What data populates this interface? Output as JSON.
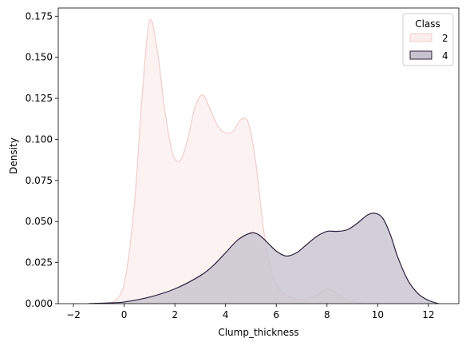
{
  "chart_data": {
    "type": "area",
    "xlabel": "Clump_thickness",
    "ylabel": "Density",
    "xlim": [
      -2.6,
      13.2
    ],
    "ylim": [
      0,
      0.18
    ],
    "xticks": [
      -2,
      0,
      2,
      4,
      6,
      8,
      10,
      12
    ],
    "yticks": [
      0.0,
      0.025,
      0.05,
      0.075,
      0.1,
      0.125,
      0.15,
      0.175
    ],
    "ytick_labels": [
      "0.000",
      "0.025",
      "0.050",
      "0.075",
      "0.100",
      "0.125",
      "0.150",
      "0.175"
    ],
    "grid": false,
    "legend": {
      "title": "Class",
      "placement": "top-right"
    },
    "series": [
      {
        "name": "2",
        "fill": "#fbedec",
        "stroke": "#efcfca",
        "x": [
          -0.5,
          0.0,
          0.4,
          0.7,
          1.0,
          1.3,
          1.6,
          1.9,
          2.2,
          2.5,
          2.8,
          3.1,
          3.4,
          3.7,
          4.0,
          4.3,
          4.6,
          4.9,
          5.2,
          5.5,
          5.8,
          6.1,
          6.4,
          6.8,
          7.2,
          7.6,
          8.0,
          8.4,
          8.8,
          9.5
        ],
        "y": [
          0.0,
          0.012,
          0.06,
          0.125,
          0.172,
          0.155,
          0.118,
          0.092,
          0.087,
          0.1,
          0.12,
          0.127,
          0.118,
          0.108,
          0.104,
          0.105,
          0.112,
          0.11,
          0.085,
          0.045,
          0.02,
          0.009,
          0.005,
          0.003,
          0.003,
          0.005,
          0.009,
          0.006,
          0.002,
          0.0
        ]
      },
      {
        "name": "4",
        "fill": "#c7c3ce",
        "stroke": "#2e1e3b",
        "x": [
          -1.4,
          -0.5,
          0.0,
          1.0,
          2.0,
          3.0,
          3.5,
          4.0,
          4.5,
          5.0,
          5.3,
          5.6,
          6.0,
          6.4,
          6.8,
          7.2,
          7.6,
          8.0,
          8.4,
          8.8,
          9.2,
          9.6,
          9.9,
          10.2,
          10.5,
          10.8,
          11.2,
          11.6,
          12.0,
          12.4
        ],
        "y": [
          0.0,
          0.0005,
          0.001,
          0.004,
          0.009,
          0.017,
          0.023,
          0.031,
          0.039,
          0.043,
          0.042,
          0.038,
          0.032,
          0.029,
          0.031,
          0.036,
          0.041,
          0.044,
          0.044,
          0.045,
          0.049,
          0.054,
          0.055,
          0.052,
          0.042,
          0.028,
          0.014,
          0.006,
          0.002,
          0.0
        ]
      }
    ]
  }
}
